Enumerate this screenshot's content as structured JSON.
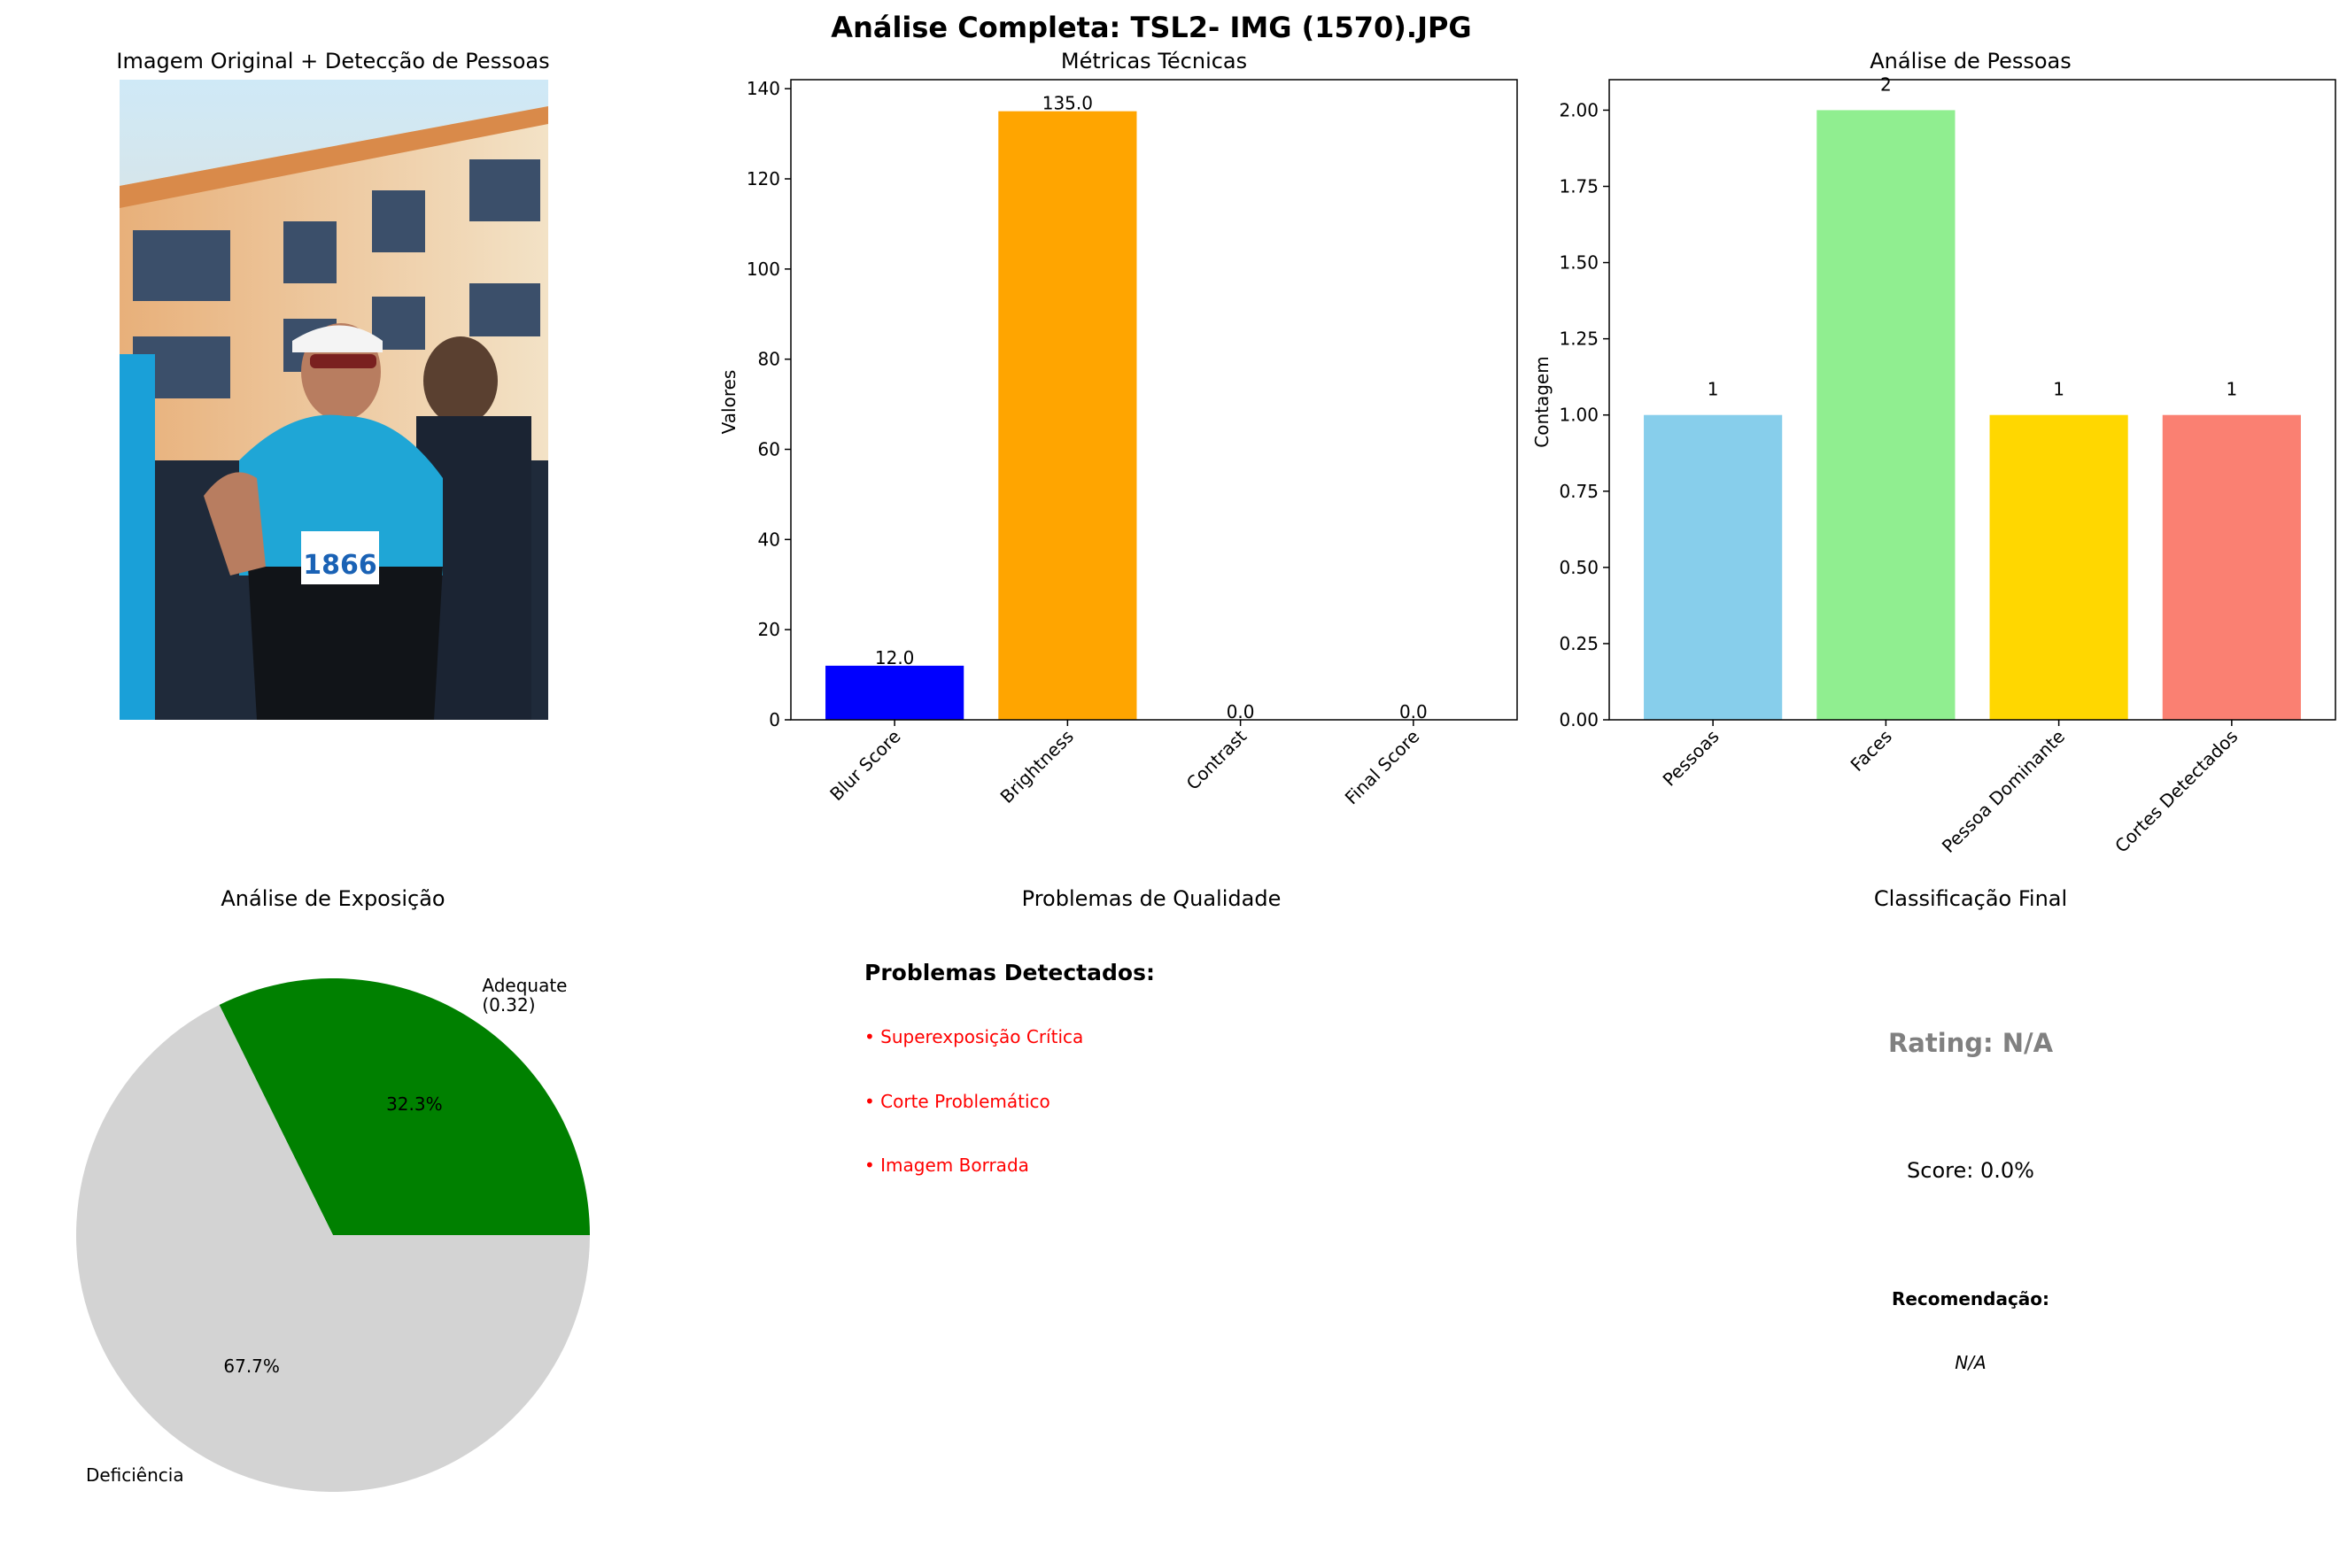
{
  "figure": {
    "suptitle": "Análise Completa: TSL2- IMG  (1570).JPG"
  },
  "panel_image": {
    "title": "Imagem Original + Detecção de Pessoas",
    "bib_number": "1866"
  },
  "chart_data": [
    {
      "id": "metricas",
      "type": "bar",
      "title": "Métricas Técnicas",
      "xlabel": "",
      "ylabel": "Valores",
      "categories": [
        "Blur Score",
        "Brightness",
        "Contrast",
        "Final Score"
      ],
      "values": [
        12.0,
        135.0,
        0.0,
        0.0
      ],
      "value_labels": [
        "12.0",
        "135.0",
        "0.0",
        "0.0"
      ],
      "colors": [
        "#0000ff",
        "#ffa500",
        "#ff0000",
        "#008000"
      ],
      "ylim": [
        0,
        142
      ],
      "yticks": [
        0,
        20,
        40,
        60,
        80,
        100,
        120,
        140
      ],
      "ytick_labels": [
        "0",
        "20",
        "40",
        "60",
        "80",
        "100",
        "120",
        "140"
      ],
      "tick_rotation": 45,
      "grid": false
    },
    {
      "id": "pessoas",
      "type": "bar",
      "title": "Análise de Pessoas",
      "xlabel": "",
      "ylabel": "Contagem",
      "categories": [
        "Pessoas",
        "Faces",
        "Pessoa Dominante",
        "Cortes Detectados"
      ],
      "values": [
        1,
        2,
        1,
        1
      ],
      "value_labels": [
        "1",
        "2",
        "1",
        "1"
      ],
      "colors": [
        "#87ceeb",
        "#90ee90",
        "#ffd700",
        "#fa8072"
      ],
      "ylim": [
        0,
        2.1
      ],
      "yticks": [
        0,
        0.25,
        0.5,
        0.75,
        1.0,
        1.25,
        1.5,
        1.75,
        2.0
      ],
      "ytick_labels": [
        "0.00",
        "0.25",
        "0.50",
        "0.75",
        "1.00",
        "1.25",
        "1.50",
        "1.75",
        "2.00"
      ],
      "tick_rotation": 45,
      "grid": false
    },
    {
      "id": "exposicao",
      "type": "pie",
      "title": "Análise de Exposição",
      "slices": [
        {
          "label": "Adequate\n(0.32)",
          "value": 32.3,
          "pct_label": "32.3%",
          "color": "#008000"
        },
        {
          "label": "Deficiência",
          "value": 67.7,
          "pct_label": "67.7%",
          "color": "#d3d3d3"
        }
      ]
    }
  ],
  "problemas": {
    "title": "Problemas de Qualidade",
    "heading": "Problemas Detectados:",
    "items": [
      "• Superexposição Crítica",
      "• Corte Problemático",
      "• Imagem Borrada"
    ],
    "item_color": "#ff0000"
  },
  "classificacao": {
    "title": "Classificação Final",
    "rating": "Rating: N/A",
    "rating_color": "#808080",
    "score": "Score: 0.0%",
    "recommendation_label": "Recomendação:",
    "recommendation": "N/A"
  }
}
